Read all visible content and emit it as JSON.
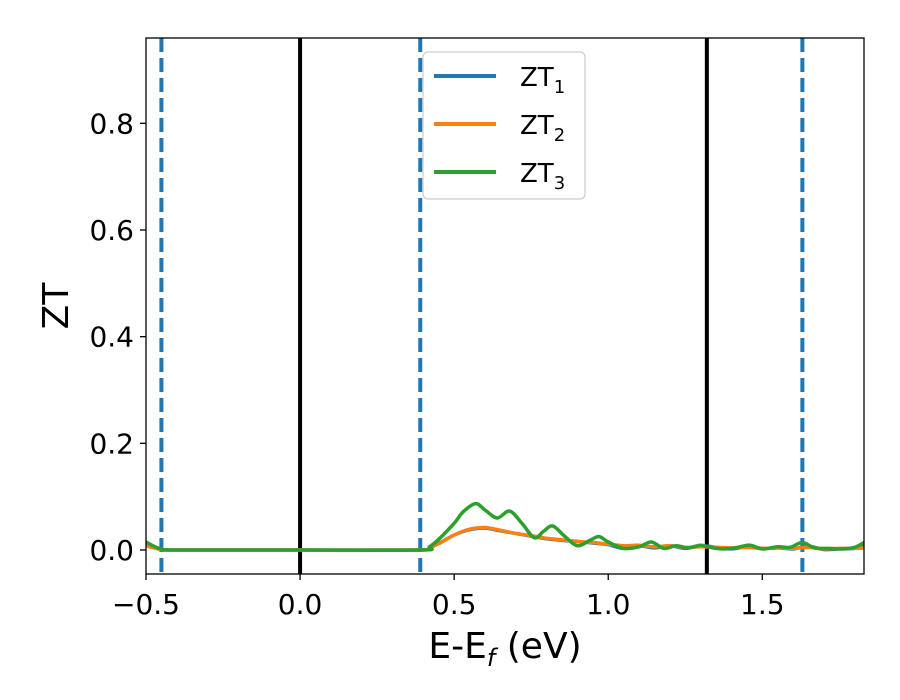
{
  "chart_data": {
    "type": "line",
    "xlabel_main": "E-E",
    "xlabel_sub": "f",
    "xlabel_unit": " (eV)",
    "ylabel": "ZT",
    "xlim": [
      -0.5,
      1.83
    ],
    "ylim": [
      -0.045,
      0.96
    ],
    "xticks": [
      {
        "value": -0.5,
        "label": "−0.5"
      },
      {
        "value": 0.0,
        "label": "0.0"
      },
      {
        "value": 0.5,
        "label": "0.5"
      },
      {
        "value": 1.0,
        "label": "1.0"
      },
      {
        "value": 1.5,
        "label": "1.5"
      }
    ],
    "yticks": [
      {
        "value": 0.0,
        "label": "0.0"
      },
      {
        "value": 0.2,
        "label": "0.2"
      },
      {
        "value": 0.4,
        "label": "0.4"
      },
      {
        "value": 0.6,
        "label": "0.6"
      },
      {
        "value": 0.8,
        "label": "0.8"
      }
    ],
    "vlines": [
      {
        "x": -0.45,
        "style": "dashed",
        "color": "#1f77b4"
      },
      {
        "x": 0.0,
        "style": "solid",
        "color": "#000000"
      },
      {
        "x": 0.39,
        "style": "dashed",
        "color": "#1f77b4"
      },
      {
        "x": 1.32,
        "style": "solid",
        "color": "#000000"
      },
      {
        "x": 1.63,
        "style": "dashed",
        "color": "#1f77b4"
      }
    ],
    "legend_position": "top-center",
    "series": [
      {
        "name": "ZT",
        "subscript": "1",
        "color": "#1f77b4",
        "x": [
          -0.5,
          -0.45,
          -0.4,
          0.0,
          0.39,
          0.42,
          0.45,
          0.5,
          0.55,
          0.6,
          0.65,
          0.7,
          0.75,
          0.8,
          0.85,
          0.9,
          0.95,
          1.0,
          1.05,
          1.1,
          1.15,
          1.2,
          1.25,
          1.3,
          1.35,
          1.4,
          1.45,
          1.5,
          1.55,
          1.6,
          1.65,
          1.7,
          1.75,
          1.8,
          1.83
        ],
        "values": [
          0.012,
          0.002,
          0.0,
          0.0,
          0.0,
          0.004,
          0.012,
          0.028,
          0.038,
          0.041,
          0.036,
          0.031,
          0.026,
          0.021,
          0.018,
          0.016,
          0.013,
          0.01,
          0.003,
          0.008,
          0.004,
          0.008,
          0.003,
          0.008,
          0.005,
          0.002,
          0.006,
          0.003,
          0.004,
          0.002,
          0.007,
          0.001,
          0.002,
          0.003,
          0.007
        ]
      },
      {
        "name": "ZT",
        "subscript": "2",
        "color": "#ff7f0e",
        "x": [
          -0.5,
          -0.45,
          -0.4,
          0.0,
          0.39,
          0.42,
          0.45,
          0.5,
          0.55,
          0.6,
          0.65,
          0.7,
          0.75,
          0.8,
          0.85,
          0.9,
          0.95,
          1.0,
          1.05,
          1.1,
          1.15,
          1.2,
          1.25,
          1.3,
          1.35,
          1.4,
          1.45,
          1.5,
          1.55,
          1.6,
          1.65,
          1.7,
          1.75,
          1.8,
          1.83
        ],
        "values": [
          0.008,
          0.001,
          0.0,
          0.0,
          0.0,
          0.004,
          0.012,
          0.028,
          0.039,
          0.042,
          0.037,
          0.031,
          0.027,
          0.022,
          0.019,
          0.016,
          0.014,
          0.011,
          0.008,
          0.009,
          0.006,
          0.008,
          0.005,
          0.006,
          0.005,
          0.004,
          0.005,
          0.003,
          0.004,
          0.003,
          0.005,
          0.002,
          0.003,
          0.003,
          0.004
        ]
      },
      {
        "name": "ZT",
        "subscript": "3",
        "color": "#2ca02c",
        "x": [
          -0.5,
          -0.47,
          -0.45,
          -0.4,
          0.0,
          0.39,
          0.42,
          0.45,
          0.5,
          0.53,
          0.57,
          0.6,
          0.64,
          0.68,
          0.72,
          0.76,
          0.79,
          0.82,
          0.86,
          0.9,
          0.94,
          0.97,
          1.0,
          1.05,
          1.1,
          1.14,
          1.18,
          1.22,
          1.26,
          1.3,
          1.34,
          1.38,
          1.42,
          1.46,
          1.5,
          1.55,
          1.59,
          1.63,
          1.67,
          1.72,
          1.76,
          1.8,
          1.83
        ],
        "values": [
          0.015,
          0.006,
          0.002,
          0.0,
          0.0,
          0.0,
          0.006,
          0.02,
          0.05,
          0.072,
          0.087,
          0.075,
          0.06,
          0.073,
          0.05,
          0.023,
          0.035,
          0.045,
          0.025,
          0.008,
          0.018,
          0.025,
          0.015,
          0.003,
          0.006,
          0.015,
          0.003,
          0.008,
          0.004,
          0.009,
          0.004,
          0.002,
          0.005,
          0.009,
          0.002,
          0.006,
          0.005,
          0.014,
          0.004,
          0.003,
          0.002,
          0.005,
          0.014
        ]
      }
    ]
  }
}
